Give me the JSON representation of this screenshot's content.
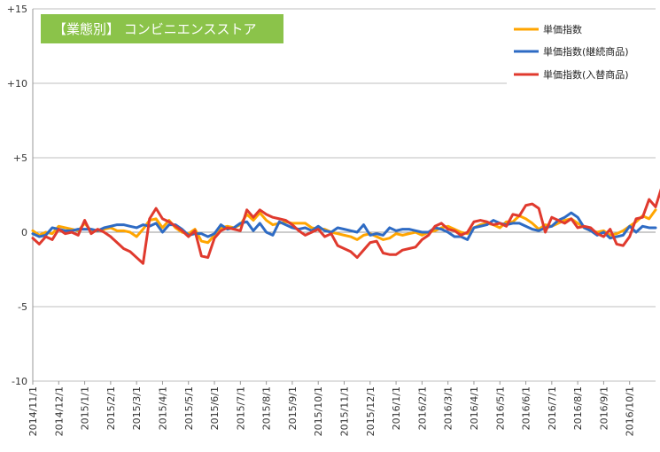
{
  "chart_data": {
    "type": "line",
    "title": "【業態別】 コンビニエンスストア",
    "xlabel": "",
    "ylabel": "",
    "ylim": [
      -10,
      15
    ],
    "yticks": [
      {
        "value": 15,
        "label": "+15"
      },
      {
        "value": 10,
        "label": "+10"
      },
      {
        "value": 5,
        "label": "+5"
      },
      {
        "value": 0,
        "label": "0"
      },
      {
        "value": -5,
        "label": "-5"
      },
      {
        "value": -10,
        "label": "-10"
      }
    ],
    "x_ticks": [
      {
        "week": 0,
        "label": "2014/11/1"
      },
      {
        "week": 4,
        "label": "2014/12/1"
      },
      {
        "week": 8,
        "label": "2015/1/1"
      },
      {
        "week": 12,
        "label": "2015/2/1"
      },
      {
        "week": 16,
        "label": "2015/3/1"
      },
      {
        "week": 20,
        "label": "2015/4/1"
      },
      {
        "week": 24,
        "label": "2015/5/1"
      },
      {
        "week": 28,
        "label": "2015/6/1"
      },
      {
        "week": 32,
        "label": "2015/7/1"
      },
      {
        "week": 36,
        "label": "2015/8/1"
      },
      {
        "week": 40,
        "label": "2015/9/1"
      },
      {
        "week": 44,
        "label": "2015/10/1"
      },
      {
        "week": 48,
        "label": "2015/11/1"
      },
      {
        "week": 52,
        "label": "2015/12/1"
      },
      {
        "week": 56,
        "label": "2016/1/1"
      },
      {
        "week": 60,
        "label": "2016/2/1"
      },
      {
        "week": 64,
        "label": "2016/3/1"
      },
      {
        "week": 68,
        "label": "2016/4/1"
      },
      {
        "week": 72,
        "label": "2016/5/1"
      },
      {
        "week": 76,
        "label": "2016/6/1"
      },
      {
        "week": 80,
        "label": "2016/7/1"
      },
      {
        "week": 84,
        "label": "2016/8/1"
      },
      {
        "week": 88,
        "label": "2016/9/1"
      },
      {
        "week": 92,
        "label": "2016/10/1"
      }
    ],
    "grid": true,
    "legend_position": "top-right",
    "series": [
      {
        "name": "単価指数",
        "color": "#FFA500",
        "values": [
          0.1,
          -0.2,
          0.0,
          -0.1,
          0.4,
          0.3,
          0.2,
          0.1,
          0.6,
          0.1,
          0.1,
          0.2,
          0.3,
          0.1,
          0.1,
          0.0,
          -0.3,
          0.2,
          0.8,
          0.9,
          0.3,
          0.8,
          0.3,
          0.0,
          -0.1,
          0.2,
          -0.6,
          -0.7,
          -0.2,
          0.3,
          0.4,
          0.3,
          0.5,
          1.2,
          0.8,
          1.3,
          0.8,
          0.5,
          0.6,
          0.7,
          0.6,
          0.6,
          0.6,
          0.3,
          0.2,
          0.2,
          0.0,
          -0.1,
          -0.2,
          -0.3,
          -0.5,
          -0.2,
          -0.1,
          -0.3,
          -0.5,
          -0.4,
          -0.1,
          -0.2,
          -0.1,
          0.0,
          -0.2,
          0.0,
          0.1,
          0.3,
          0.4,
          0.2,
          0.0,
          -0.1,
          0.3,
          0.5,
          0.6,
          0.5,
          0.3,
          0.7,
          0.7,
          1.1,
          0.9,
          0.6,
          0.2,
          0.5,
          0.4,
          0.6,
          0.8,
          0.9,
          0.6,
          0.3,
          0.1,
          0.0,
          0.1,
          -0.2,
          -0.1,
          0.1,
          0.4,
          0.7,
          1.1,
          0.9,
          1.5
        ]
      },
      {
        "name": "単価指数(継続商品)",
        "color": "#2E6BC4",
        "values": [
          -0.1,
          -0.3,
          -0.2,
          0.3,
          0.2,
          0.1,
          0.1,
          0.2,
          0.2,
          0.2,
          0.1,
          0.3,
          0.4,
          0.5,
          0.5,
          0.4,
          0.3,
          0.5,
          0.4,
          0.6,
          0.0,
          0.5,
          0.5,
          0.2,
          -0.2,
          -0.1,
          -0.1,
          -0.3,
          -0.1,
          0.5,
          0.2,
          0.3,
          0.6,
          0.7,
          0.1,
          0.6,
          0.0,
          -0.2,
          0.7,
          0.5,
          0.3,
          0.2,
          0.3,
          0.1,
          0.4,
          0.1,
          0.0,
          0.3,
          0.2,
          0.1,
          0.0,
          0.5,
          -0.2,
          -0.1,
          -0.2,
          0.3,
          0.1,
          0.2,
          0.2,
          0.1,
          0.0,
          0.0,
          0.3,
          0.2,
          0.0,
          -0.3,
          -0.3,
          -0.5,
          0.3,
          0.4,
          0.5,
          0.8,
          0.6,
          0.5,
          0.6,
          0.6,
          0.4,
          0.2,
          0.1,
          0.3,
          0.4,
          0.8,
          1.0,
          1.3,
          1.0,
          0.3,
          0.1,
          -0.2,
          0.0,
          -0.4,
          -0.3,
          -0.2,
          0.4,
          0.0,
          0.4,
          0.3,
          0.3
        ]
      },
      {
        "name": "単価指数(入替商品)",
        "color": "#E03A2E",
        "values": [
          -0.4,
          -0.8,
          -0.3,
          -0.5,
          0.2,
          -0.1,
          0.0,
          -0.2,
          0.8,
          -0.1,
          0.2,
          0.0,
          -0.3,
          -0.7,
          -1.1,
          -1.3,
          -1.7,
          -2.1,
          0.9,
          1.6,
          0.9,
          0.7,
          0.4,
          0.1,
          -0.3,
          0.1,
          -1.6,
          -1.7,
          -0.4,
          0.1,
          0.3,
          0.2,
          0.1,
          1.5,
          1.0,
          1.5,
          1.2,
          1.0,
          0.9,
          0.8,
          0.5,
          0.1,
          -0.2,
          0.0,
          0.2,
          -0.3,
          -0.1,
          -0.9,
          -1.1,
          -1.3,
          -1.7,
          -1.2,
          -0.7,
          -0.6,
          -1.4,
          -1.5,
          -1.5,
          -1.2,
          -1.1,
          -1.0,
          -0.5,
          -0.2,
          0.4,
          0.6,
          0.2,
          0.1,
          -0.2,
          0.0,
          0.7,
          0.8,
          0.7,
          0.5,
          0.6,
          0.4,
          1.2,
          1.1,
          1.8,
          1.9,
          1.6,
          0.0,
          1.0,
          0.8,
          0.6,
          0.9,
          0.3,
          0.4,
          0.3,
          -0.1,
          -0.3,
          0.2,
          -0.8,
          -0.9,
          -0.3,
          0.9,
          1.0,
          2.2,
          1.7,
          3.1
        ]
      }
    ]
  }
}
